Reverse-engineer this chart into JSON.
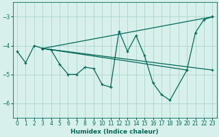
{
  "title": "",
  "xlabel": "Humidex (Indice chaleur)",
  "ylabel": "",
  "background_color": "#d8f0ec",
  "grid_color": "#b0d8d0",
  "line_color": "#006655",
  "xlim": [
    -0.5,
    23.5
  ],
  "ylim": [
    -6.5,
    -2.5
  ],
  "xticks": [
    0,
    1,
    2,
    3,
    4,
    5,
    6,
    7,
    8,
    9,
    10,
    11,
    12,
    13,
    14,
    15,
    16,
    17,
    18,
    19,
    20,
    21,
    22,
    23
  ],
  "yticks": [
    -6,
    -5,
    -4,
    -3
  ],
  "series": [
    {
      "x": [
        0,
        1,
        2,
        3,
        4,
        5,
        6,
        7,
        8,
        9,
        10,
        11,
        12,
        13,
        14,
        15,
        16,
        17,
        18,
        20,
        21,
        22,
        23
      ],
      "y": [
        -4.2,
        -4.6,
        -4.0,
        -4.1,
        -4.15,
        -4.65,
        -5.0,
        -5.0,
        -4.75,
        -4.8,
        -5.35,
        -5.45,
        -3.5,
        -4.2,
        -3.65,
        -4.35,
        -5.3,
        -5.7,
        -5.9,
        -4.85,
        -3.55,
        -3.1,
        -3.0
      ]
    },
    {
      "x": [
        3,
        23
      ],
      "y": [
        -4.1,
        -3.0
      ]
    },
    {
      "x": [
        3,
        20
      ],
      "y": [
        -4.1,
        -4.85
      ]
    },
    {
      "x": [
        3,
        23
      ],
      "y": [
        -4.1,
        -4.85
      ]
    }
  ]
}
